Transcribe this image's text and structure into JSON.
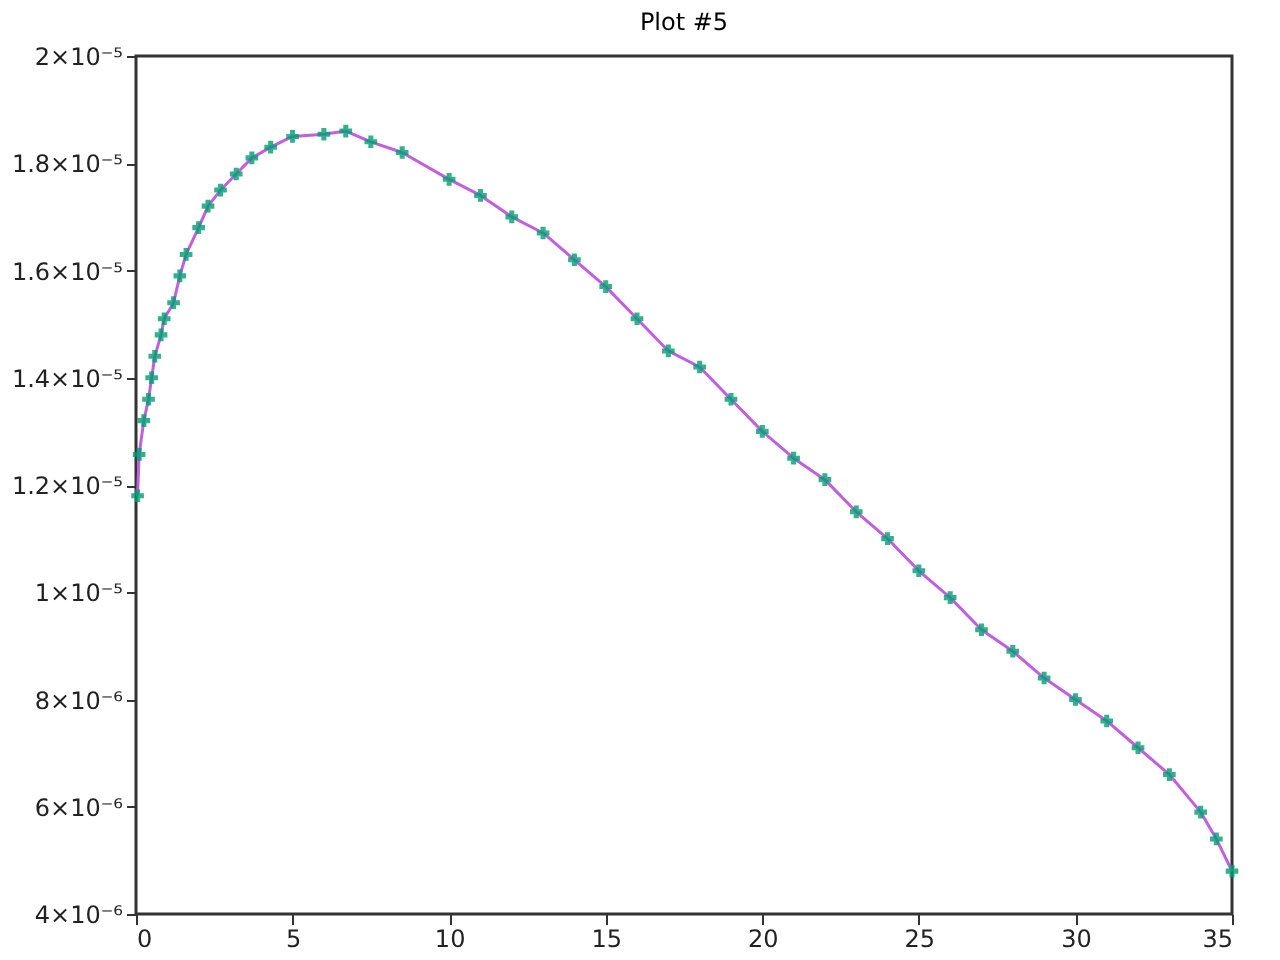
{
  "chart_data": {
    "type": "line",
    "title": "Plot #5",
    "x": [
      0.05,
      0.1,
      0.25,
      0.4,
      0.5,
      0.6,
      0.8,
      0.9,
      1.2,
      1.4,
      1.6,
      2.0,
      2.3,
      2.7,
      3.2,
      3.7,
      4.3,
      5,
      6,
      6.7,
      7.5,
      8.5,
      10,
      11,
      12,
      13,
      14,
      15,
      16,
      17,
      18,
      19,
      20,
      21,
      22,
      23,
      24,
      25,
      26,
      27,
      28,
      29,
      30,
      31,
      32,
      33,
      34,
      34.5,
      35
    ],
    "series": [
      {
        "color": "#c060e0",
        "values": [
          1.18e-05,
          1.257e-05,
          1.32e-05,
          1.36e-05,
          1.4e-05,
          1.44e-05,
          1.48e-05,
          1.51e-05,
          1.54e-05,
          1.59e-05,
          1.63e-05,
          1.68e-05,
          1.72e-05,
          1.75e-05,
          1.78e-05,
          1.81e-05,
          1.83e-05,
          1.85e-05,
          1.854e-05,
          1.86e-05,
          1.84e-05,
          1.82e-05,
          1.77e-05,
          1.74e-05,
          1.7e-05,
          1.67e-05,
          1.62e-05,
          1.57e-05,
          1.51e-05,
          1.45e-05,
          1.42e-05,
          1.36e-05,
          1.3e-05,
          1.25e-05,
          1.21e-05,
          1.15e-05,
          1.1e-05,
          1.04e-05,
          9.9e-06,
          9.3e-06,
          8.9e-06,
          8.4e-06,
          8e-06,
          7.6e-06,
          7.1e-06,
          6.6e-06,
          5.9e-06,
          5.4e-06,
          4.8e-06
        ]
      },
      {
        "type": "scatter",
        "color": "#009e73",
        "marker": "cross",
        "values": [
          1.18e-05,
          1.257e-05,
          1.32e-05,
          1.36e-05,
          1.4e-05,
          1.44e-05,
          1.48e-05,
          1.51e-05,
          1.54e-05,
          1.59e-05,
          1.63e-05,
          1.68e-05,
          1.72e-05,
          1.75e-05,
          1.78e-05,
          1.81e-05,
          1.83e-05,
          1.85e-05,
          1.854e-05,
          1.86e-05,
          1.84e-05,
          1.82e-05,
          1.77e-05,
          1.74e-05,
          1.7e-05,
          1.67e-05,
          1.62e-05,
          1.57e-05,
          1.51e-05,
          1.45e-05,
          1.42e-05,
          1.36e-05,
          1.3e-05,
          1.25e-05,
          1.21e-05,
          1.15e-05,
          1.1e-05,
          1.04e-05,
          9.9e-06,
          9.3e-06,
          8.9e-06,
          8.4e-06,
          8e-06,
          7.6e-06,
          7.1e-06,
          6.6e-06,
          5.9e-06,
          5.4e-06,
          4.8e-06
        ]
      }
    ],
    "xlim": [
      0,
      35
    ],
    "xticks": [
      0,
      5,
      10,
      15,
      20,
      25,
      30,
      35
    ],
    "ylim": [
      4e-06,
      2e-05
    ],
    "yticks": [
      {
        "value": 4e-06,
        "label": "4×10⁻⁶"
      },
      {
        "value": 6e-06,
        "label": "6×10⁻⁶"
      },
      {
        "value": 8e-06,
        "label": "8×10⁻⁶"
      },
      {
        "value": 1e-05,
        "label": "1×10⁻⁵"
      },
      {
        "value": 1.2e-05,
        "label": "1.2×10⁻⁵"
      },
      {
        "value": 1.4e-05,
        "label": "1.4×10⁻⁵"
      },
      {
        "value": 1.6e-05,
        "label": "1.6×10⁻⁵"
      },
      {
        "value": 1.8e-05,
        "label": "1.8×10⁻⁵"
      },
      {
        "value": 2e-05,
        "label": "2×10⁻⁵"
      }
    ],
    "grid": false
  }
}
